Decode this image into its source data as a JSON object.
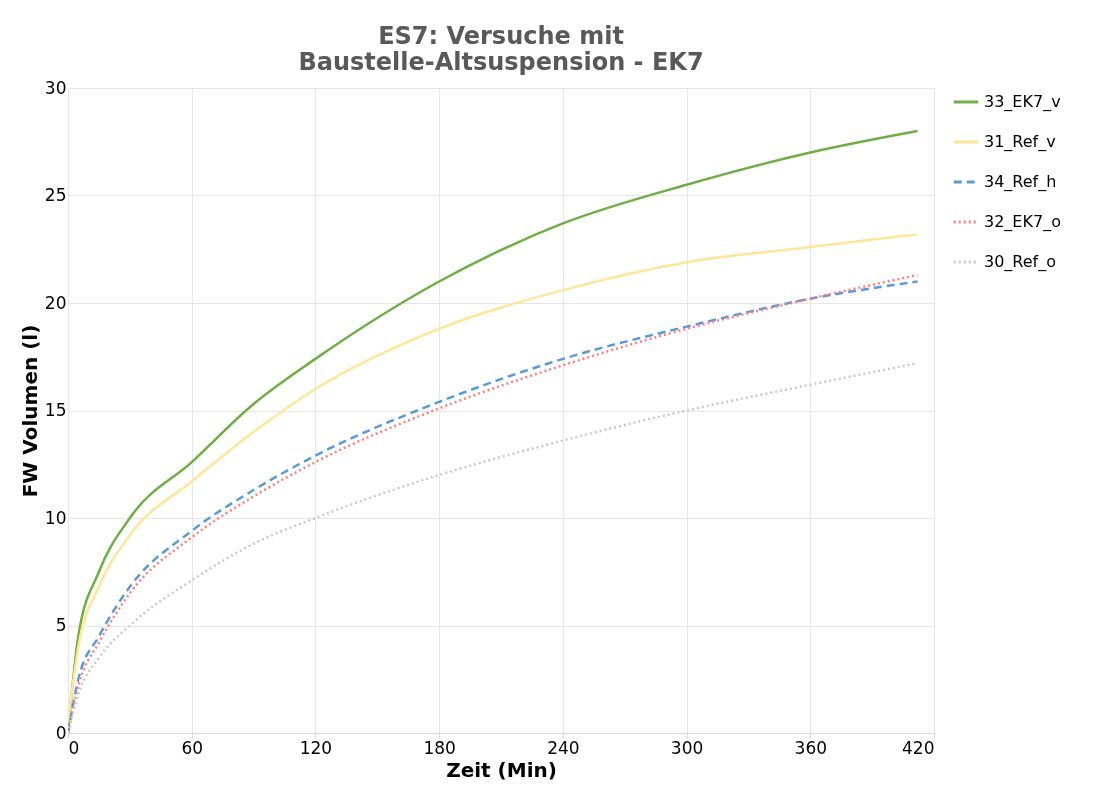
{
  "chart_data": {
    "type": "line",
    "title": "ES7: Versuche mit\nBaustelle-Altsuspension - EK7",
    "xlabel": "Zeit (Min)",
    "ylabel": "FW Volumen (l)",
    "x": [
      0,
      5,
      15,
      30,
      60,
      90,
      120,
      180,
      240,
      300,
      360,
      412
    ],
    "xlim": [
      0,
      420
    ],
    "xticks": [
      0,
      60,
      120,
      180,
      240,
      300,
      360,
      420
    ],
    "ylim": [
      0,
      30
    ],
    "yticks": [
      0,
      5,
      10,
      15,
      20,
      25,
      30
    ],
    "grid": true,
    "legend": "right",
    "marker": "none",
    "series": [
      {
        "name": "33_EK7_v",
        "color": "#70ad47",
        "line_style": "solid",
        "values": [
          0,
          4.5,
          7.5,
          10,
          12.6,
          15.3,
          17.4,
          21,
          23.7,
          25.5,
          27,
          28
        ]
      },
      {
        "name": "31_Ref_v",
        "color": "#ffe699",
        "line_style": "solid",
        "values": [
          0.5,
          4,
          6.8,
          9.2,
          11.7,
          14,
          16,
          18.8,
          20.6,
          21.9,
          22.6,
          23.2
        ]
      },
      {
        "name": "34_Ref_h",
        "color": "#5b9bd5",
        "line_style": "dashed",
        "values": [
          0,
          2.5,
          4.5,
          6.8,
          9.4,
          11.3,
          12.9,
          15.4,
          17.4,
          18.9,
          20.2,
          21
        ]
      },
      {
        "name": "32_EK7_o",
        "color": "#ff7c80",
        "line_style": "dotted",
        "values": [
          0,
          2.2,
          4.2,
          6.5,
          9.1,
          11,
          12.6,
          15.1,
          17.1,
          18.8,
          20.2,
          21.3
        ]
      },
      {
        "name": "30_Ref_o",
        "color": "#c9c9c9",
        "line_style": "dotted",
        "values": [
          0,
          1.8,
          3.5,
          5,
          7.1,
          8.8,
          10,
          12,
          13.6,
          15,
          16.2,
          17.2
        ]
      }
    ]
  }
}
